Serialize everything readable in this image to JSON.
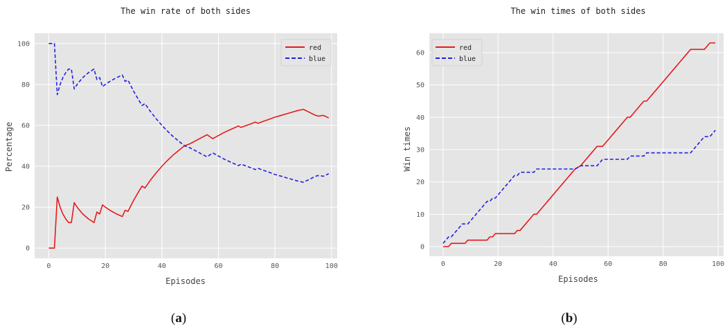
{
  "chart_data": [
    {
      "type": "line",
      "title": "The win rate of both sides",
      "xlabel": "Episodes",
      "ylabel": "Percentage",
      "xlim": [
        -5,
        102
      ],
      "ylim": [
        -5,
        105
      ],
      "xticks": [
        0,
        20,
        40,
        60,
        80,
        100
      ],
      "yticks": [
        0,
        20,
        40,
        60,
        80,
        100
      ],
      "grid": true,
      "legend": "top-right",
      "caption_letter": "a",
      "series": [
        {
          "name": "red",
          "color": "#e41a1c",
          "dash": "solid",
          "x": [
            0,
            2,
            3,
            4,
            5,
            6,
            7,
            8,
            9,
            10,
            12,
            14,
            16,
            17,
            18,
            19,
            20,
            22,
            24,
            26,
            27,
            28,
            30,
            32,
            33,
            34,
            36,
            38,
            40,
            42,
            44,
            46,
            48,
            50,
            52,
            54,
            56,
            57,
            58,
            60,
            62,
            64,
            66,
            67,
            68,
            70,
            72,
            73,
            74,
            76,
            78,
            80,
            82,
            84,
            86,
            88,
            90,
            92,
            94,
            95,
            96,
            97,
            98,
            99
          ],
          "y": [
            0,
            0,
            25,
            20,
            16.7,
            14.3,
            12.5,
            12.5,
            22.2,
            20,
            16.7,
            14.3,
            12.5,
            17.6,
            16.7,
            21.1,
            20,
            18.2,
            16.7,
            15.4,
            18.5,
            17.9,
            23.3,
            28.1,
            30.3,
            29.4,
            33.3,
            36.8,
            40,
            42.9,
            45.5,
            47.8,
            50,
            51,
            52.5,
            54,
            55.4,
            54.4,
            53.5,
            55,
            56.5,
            57.8,
            59,
            59.7,
            59,
            60,
            61,
            61.6,
            61,
            62,
            63,
            64,
            64.8,
            65.6,
            66.4,
            67.2,
            67.8,
            66.5,
            65.1,
            64.6,
            64.6,
            64.9,
            64.3,
            63.6
          ]
        },
        {
          "name": "blue",
          "color": "#1f1fe0",
          "dash": "dashed",
          "x": [
            0,
            2,
            3,
            4,
            5,
            6,
            7,
            8,
            9,
            10,
            12,
            14,
            16,
            17,
            18,
            19,
            20,
            22,
            24,
            26,
            27,
            28,
            30,
            32,
            33,
            34,
            36,
            38,
            40,
            42,
            44,
            46,
            48,
            50,
            52,
            54,
            56,
            57,
            58,
            60,
            62,
            64,
            66,
            67,
            68,
            70,
            72,
            73,
            74,
            76,
            78,
            80,
            82,
            84,
            86,
            88,
            90,
            92,
            94,
            95,
            96,
            97,
            98,
            99
          ],
          "y": [
            100,
            100,
            75,
            80,
            83.3,
            85.7,
            87.5,
            87.5,
            77.8,
            80,
            83.3,
            85.7,
            87.5,
            82.4,
            83.3,
            78.9,
            80,
            81.8,
            83.3,
            84.6,
            81.5,
            82.1,
            76.7,
            71.9,
            69.7,
            70.6,
            66.7,
            63.2,
            60,
            57.1,
            54.5,
            52.2,
            50,
            49,
            47.5,
            46,
            44.6,
            45.6,
            46.5,
            45,
            43.5,
            42.2,
            41,
            40.3,
            41,
            40,
            39,
            38.4,
            39,
            38,
            37,
            36,
            35.2,
            34.4,
            33.6,
            32.8,
            32.2,
            33.5,
            34.9,
            35.4,
            35.4,
            35.1,
            35.7,
            36.4
          ]
        }
      ]
    },
    {
      "type": "line",
      "title": "The win times of both sides",
      "xlabel": "Episodes",
      "ylabel": "Win times",
      "xlim": [
        -5,
        102
      ],
      "ylim": [
        -3,
        66
      ],
      "xticks": [
        0,
        20,
        40,
        60,
        80,
        100
      ],
      "yticks": [
        0,
        10,
        20,
        30,
        40,
        50,
        60
      ],
      "grid": true,
      "legend": "top-left",
      "caption_letter": "b",
      "series": [
        {
          "name": "red",
          "color": "#e41a1c",
          "dash": "solid",
          "x": [
            0,
            2,
            3,
            4,
            5,
            6,
            7,
            8,
            9,
            10,
            12,
            14,
            16,
            17,
            18,
            19,
            20,
            22,
            24,
            26,
            27,
            28,
            30,
            32,
            33,
            34,
            36,
            38,
            40,
            42,
            44,
            46,
            48,
            50,
            52,
            54,
            56,
            57,
            58,
            60,
            62,
            64,
            66,
            67,
            68,
            70,
            72,
            73,
            74,
            76,
            78,
            80,
            82,
            84,
            86,
            88,
            90,
            92,
            94,
            95,
            96,
            97,
            98,
            99
          ],
          "y": [
            0,
            0,
            1,
            1,
            1,
            1,
            1,
            1,
            2,
            2,
            2,
            2,
            2,
            3,
            3,
            4,
            4,
            4,
            4,
            4,
            5,
            5,
            7,
            9,
            10,
            10,
            12,
            14,
            16,
            18,
            20,
            22,
            24,
            25,
            27,
            29,
            31,
            31,
            31,
            33,
            35,
            37,
            39,
            40,
            40,
            42,
            44,
            45,
            45,
            47,
            49,
            51,
            53,
            55,
            57,
            59,
            61,
            61,
            61,
            61,
            62,
            63,
            63,
            63
          ]
        },
        {
          "name": "blue",
          "color": "#1f1fe0",
          "dash": "dashed",
          "x": [
            0,
            2,
            3,
            4,
            5,
            6,
            7,
            8,
            9,
            10,
            12,
            14,
            16,
            17,
            18,
            19,
            20,
            22,
            24,
            26,
            27,
            28,
            30,
            32,
            33,
            34,
            36,
            38,
            40,
            42,
            44,
            46,
            48,
            50,
            52,
            54,
            56,
            57,
            58,
            60,
            62,
            64,
            66,
            67,
            68,
            70,
            72,
            73,
            74,
            76,
            78,
            80,
            82,
            84,
            86,
            88,
            90,
            92,
            94,
            95,
            96,
            97,
            98,
            99
          ],
          "y": [
            1,
            3,
            3,
            4,
            5,
            6,
            7,
            7,
            7,
            8,
            10,
            12,
            14,
            14,
            15,
            15,
            16,
            18,
            20,
            22,
            22,
            23,
            23,
            23,
            23,
            24,
            24,
            24,
            24,
            24,
            24,
            24,
            24,
            25,
            25,
            25,
            25,
            26,
            27,
            27,
            27,
            27,
            27,
            27,
            28,
            28,
            28,
            28,
            29,
            29,
            29,
            29,
            29,
            29,
            29,
            29,
            29,
            31,
            33,
            34,
            34,
            34,
            35,
            36
          ]
        }
      ]
    }
  ]
}
